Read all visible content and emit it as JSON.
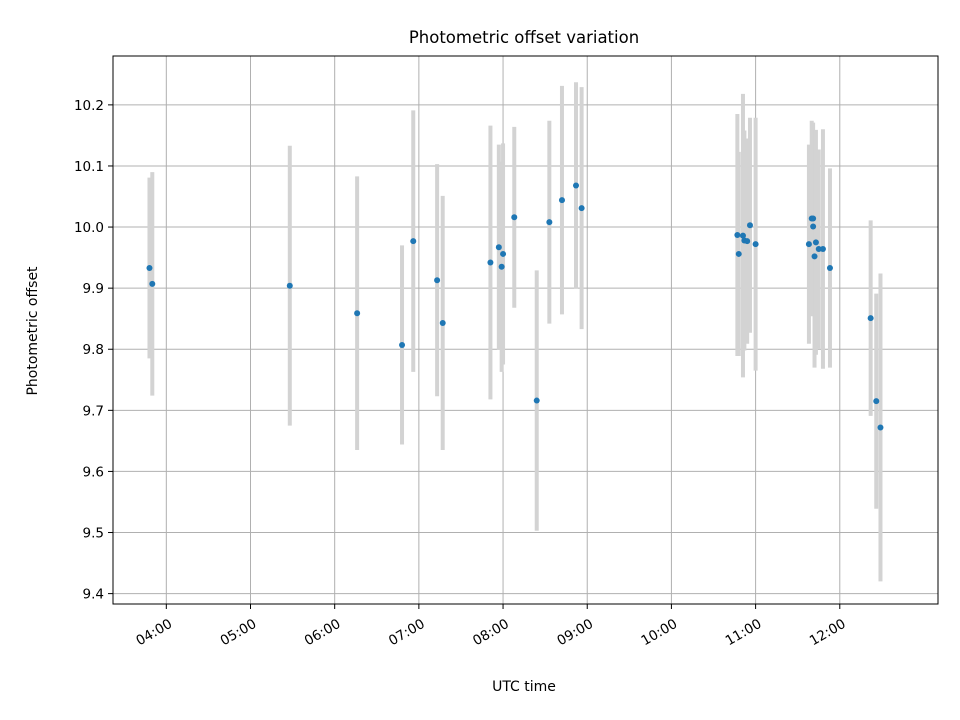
{
  "chart_data": {
    "type": "scatter",
    "title": "Photometric offset variation",
    "xlabel": "UTC time",
    "ylabel": "Photometric offset",
    "x_unit": "UTC time (HH:MM)",
    "xlim": [
      "03:22",
      "13:10"
    ],
    "ylim": [
      9.383,
      10.28
    ],
    "x_ticks": [
      "04:00",
      "05:00",
      "06:00",
      "07:00",
      "08:00",
      "09:00",
      "10:00",
      "11:00",
      "12:00"
    ],
    "y_ticks": [
      9.4,
      9.5,
      9.6,
      9.7,
      9.8,
      9.9,
      10.0,
      10.1,
      10.2
    ],
    "y_tick_labels": [
      "9.4",
      "9.5",
      "9.6",
      "9.7",
      "9.8",
      "9.9",
      "10.0",
      "10.1",
      "10.2"
    ],
    "grid": true,
    "x_tick_rotation_deg": 30,
    "marker_color": "#1f77b4",
    "errorbar_color": "#d3d3d3",
    "points": [
      {
        "x": "03:48",
        "y": 9.933,
        "err": 0.148
      },
      {
        "x": "03:50",
        "y": 9.907,
        "err": 0.183
      },
      {
        "x": "05:28",
        "y": 9.904,
        "err": 0.229
      },
      {
        "x": "06:16",
        "y": 9.859,
        "err": 0.224
      },
      {
        "x": "06:48",
        "y": 9.807,
        "err": 0.163
      },
      {
        "x": "06:56",
        "y": 9.977,
        "err": 0.214
      },
      {
        "x": "07:13",
        "y": 9.913,
        "err": 0.19
      },
      {
        "x": "07:17",
        "y": 9.843,
        "err": 0.208
      },
      {
        "x": "07:51",
        "y": 9.942,
        "err": 0.224
      },
      {
        "x": "07:57",
        "y": 9.967,
        "err": 0.168
      },
      {
        "x": "07:59",
        "y": 9.935,
        "err": 0.172
      },
      {
        "x": "08:00",
        "y": 9.956,
        "err": 0.181
      },
      {
        "x": "08:08",
        "y": 10.016,
        "err": 0.148
      },
      {
        "x": "08:24",
        "y": 9.716,
        "err": 0.213
      },
      {
        "x": "08:33",
        "y": 10.008,
        "err": 0.166
      },
      {
        "x": "08:42",
        "y": 10.044,
        "err": 0.187
      },
      {
        "x": "08:52",
        "y": 10.068,
        "err": 0.169
      },
      {
        "x": "08:56",
        "y": 10.031,
        "err": 0.198
      },
      {
        "x": "10:47",
        "y": 9.987,
        "err": 0.198
      },
      {
        "x": "10:48",
        "y": 9.956,
        "err": 0.167
      },
      {
        "x": "10:51",
        "y": 9.986,
        "err": 0.232
      },
      {
        "x": "10:52",
        "y": 9.978,
        "err": 0.18
      },
      {
        "x": "10:54",
        "y": 9.977,
        "err": 0.168
      },
      {
        "x": "10:56",
        "y": 10.003,
        "err": 0.176
      },
      {
        "x": "11:00",
        "y": 9.972,
        "err": 0.207
      },
      {
        "x": "11:38",
        "y": 9.972,
        "err": 0.163
      },
      {
        "x": "11:40",
        "y": 10.014,
        "err": 0.16
      },
      {
        "x": "11:41",
        "y": 10.014,
        "err": 0.157
      },
      {
        "x": "11:41",
        "y": 10.001,
        "err": 0.126
      },
      {
        "x": "11:42",
        "y": 9.952,
        "err": 0.182
      },
      {
        "x": "11:43",
        "y": 9.975,
        "err": 0.184
      },
      {
        "x": "11:45",
        "y": 9.964,
        "err": 0.163
      },
      {
        "x": "11:48",
        "y": 9.964,
        "err": 0.196
      },
      {
        "x": "11:53",
        "y": 9.933,
        "err": 0.163
      },
      {
        "x": "12:22",
        "y": 9.851,
        "err": 0.16
      },
      {
        "x": "12:26",
        "y": 9.715,
        "err": 0.176
      },
      {
        "x": "12:29",
        "y": 9.672,
        "err": 0.252
      }
    ]
  }
}
